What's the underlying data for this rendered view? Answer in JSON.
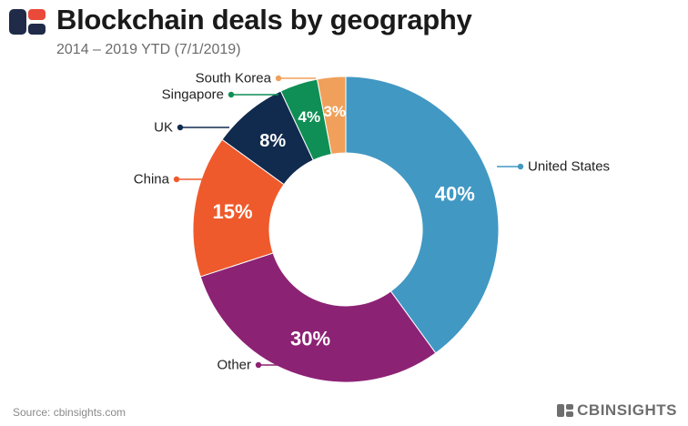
{
  "header": {
    "title": "Blockchain deals by geography",
    "subtitle": "2014 – 2019 YTD (7/1/2019)"
  },
  "footer": {
    "source": "Source: cbinsights.com",
    "brand": "CBINSIGHTS"
  },
  "icons": {
    "header_logo": "cb-insights-logo-icon",
    "footer_logo": "cb-insights-logo-icon"
  },
  "colors": {
    "logo_dark": "#1f2b48",
    "logo_red": "#e94a3a"
  },
  "chart_data": {
    "type": "pie",
    "donut": true,
    "title": "Blockchain deals by geography",
    "subtitle": "2014 – 2019 YTD (7/1/2019)",
    "categories": [
      "United States",
      "Other",
      "China",
      "UK",
      "Singapore",
      "South Korea"
    ],
    "values": [
      40,
      30,
      15,
      8,
      4,
      3
    ],
    "value_labels": [
      "40%",
      "30%",
      "15%",
      "8%",
      "4%",
      "3%"
    ],
    "colors": [
      "#4198c3",
      "#8c2274",
      "#ef5a2c",
      "#112b4f",
      "#0f8f55",
      "#f0a05a"
    ],
    "legend": "callout-labels"
  }
}
